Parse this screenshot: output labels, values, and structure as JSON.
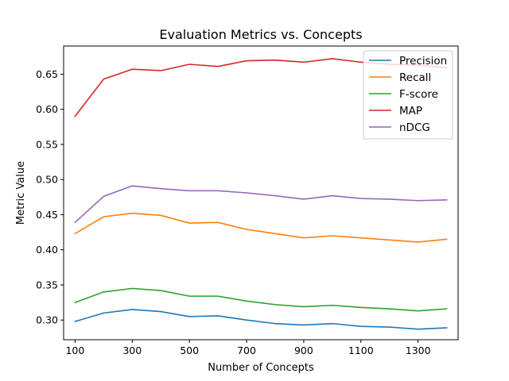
{
  "chart_data": {
    "type": "line",
    "title": "Evaluation Metrics vs. Concepts",
    "xlabel": "Number of Concepts",
    "ylabel": "Metric Value",
    "x": [
      100,
      200,
      300,
      400,
      500,
      600,
      700,
      800,
      900,
      1000,
      1100,
      1200,
      1300,
      1400
    ],
    "xticks": [
      "100",
      "300",
      "500",
      "700",
      "900",
      "1100",
      "1300"
    ],
    "yticks": [
      "0.30",
      "0.35",
      "0.40",
      "0.45",
      "0.50",
      "0.55",
      "0.60",
      "0.65"
    ],
    "xlim": [
      60,
      1440
    ],
    "ylim": [
      0.272,
      0.69
    ],
    "grid": false,
    "legend_position": "top-right",
    "series": [
      {
        "name": "Precision",
        "color": "#1f77b4",
        "values": [
          0.298,
          0.31,
          0.315,
          0.312,
          0.305,
          0.306,
          0.3,
          0.295,
          0.293,
          0.295,
          0.291,
          0.29,
          0.287,
          0.289
        ]
      },
      {
        "name": "Recall",
        "color": "#ff7f0e",
        "values": [
          0.423,
          0.447,
          0.452,
          0.449,
          0.438,
          0.439,
          0.429,
          0.423,
          0.417,
          0.42,
          0.417,
          0.414,
          0.411,
          0.415
        ]
      },
      {
        "name": "F-score",
        "color": "#2ca02c",
        "values": [
          0.325,
          0.34,
          0.345,
          0.342,
          0.334,
          0.334,
          0.327,
          0.322,
          0.319,
          0.321,
          0.318,
          0.316,
          0.313,
          0.316
        ]
      },
      {
        "name": "MAP",
        "color": "#d62728",
        "values": [
          0.59,
          0.643,
          0.657,
          0.655,
          0.664,
          0.661,
          0.669,
          0.67,
          0.667,
          0.672,
          0.667,
          0.664,
          0.663,
          0.659
        ]
      },
      {
        "name": "nDCG",
        "color": "#9467bd",
        "values": [
          0.439,
          0.476,
          0.491,
          0.487,
          0.484,
          0.484,
          0.481,
          0.477,
          0.472,
          0.477,
          0.473,
          0.472,
          0.47,
          0.471
        ]
      }
    ]
  }
}
